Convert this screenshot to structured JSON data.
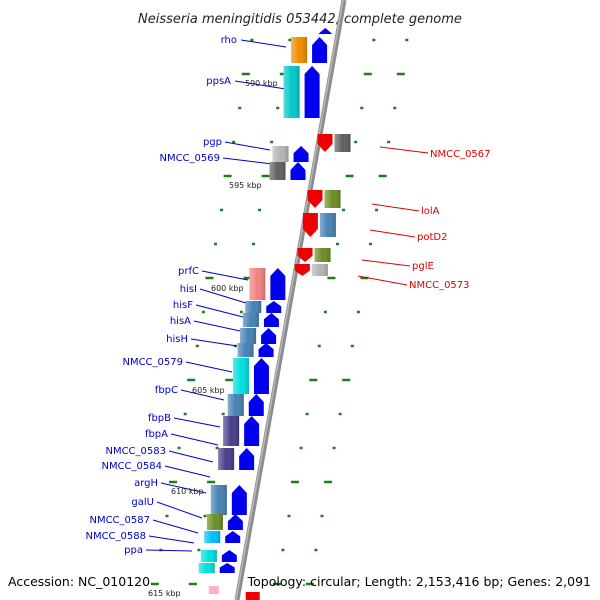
{
  "title": "Neisseria meningitidis 053442, complete genome",
  "footer": {
    "accession": "Accession: NC_010120",
    "topology": "Topology: circular; Length: 2,153,416 bp; Genes: 2,091"
  },
  "colors": {
    "backbone": "#8c8c8c",
    "left_label": "#0000cc",
    "right_label": "#dd0000",
    "tick": "#1a7f1a",
    "forward_arrow": "#0000ee",
    "reverse_arrow": "#ee0000"
  },
  "kbp_markers": [
    "590 kbp",
    "595 kbp",
    "600 kbp",
    "605 kbp",
    "610 kbp",
    "615 kbp"
  ],
  "genes_left": [
    {
      "label": "rho",
      "color": "#f08c00"
    },
    {
      "label": "ppsA",
      "color": "#00c8c8"
    },
    {
      "label": "pgp",
      "color": "#b4b4b4"
    },
    {
      "label": "NMCC_0569",
      "color": "#606060"
    },
    {
      "label": "prfC",
      "color": "#f08080"
    },
    {
      "label": "hisI",
      "color": "#4682b4"
    },
    {
      "label": "hisF",
      "color": "#4682b4"
    },
    {
      "label": "hisA",
      "color": "#4682b4"
    },
    {
      "label": "hisH",
      "color": "#4682b4"
    },
    {
      "label": "NMCC_0579",
      "color": "#00e0e0"
    },
    {
      "label": "fbpC",
      "color": "#4682b4"
    },
    {
      "label": "fbpB",
      "color": "#483d8b"
    },
    {
      "label": "fbpA",
      "color": "#483d8b"
    },
    {
      "label": "NMCC_0583",
      "color": "#483d8b"
    },
    {
      "label": "NMCC_0584",
      "color": "#483d8b"
    },
    {
      "label": "argH",
      "color": "#4682b4"
    },
    {
      "label": "galU",
      "color": "#6b8e23"
    },
    {
      "label": "NMCC_0587",
      "color": "#00bfff"
    },
    {
      "label": "NMCC_0588",
      "color": "#00e0e0"
    },
    {
      "label": "ppa",
      "color": "#00e0e0"
    }
  ],
  "genes_right": [
    {
      "label": "NMCC_0567",
      "color": "#606060"
    },
    {
      "label": "lolA",
      "color": "#6b8e23"
    },
    {
      "label": "potD2",
      "color": "#4682b4"
    },
    {
      "label": "pglE",
      "color": "#6b8e23"
    },
    {
      "label": "NMCC_0573",
      "color": "#b4b4b4"
    }
  ]
}
